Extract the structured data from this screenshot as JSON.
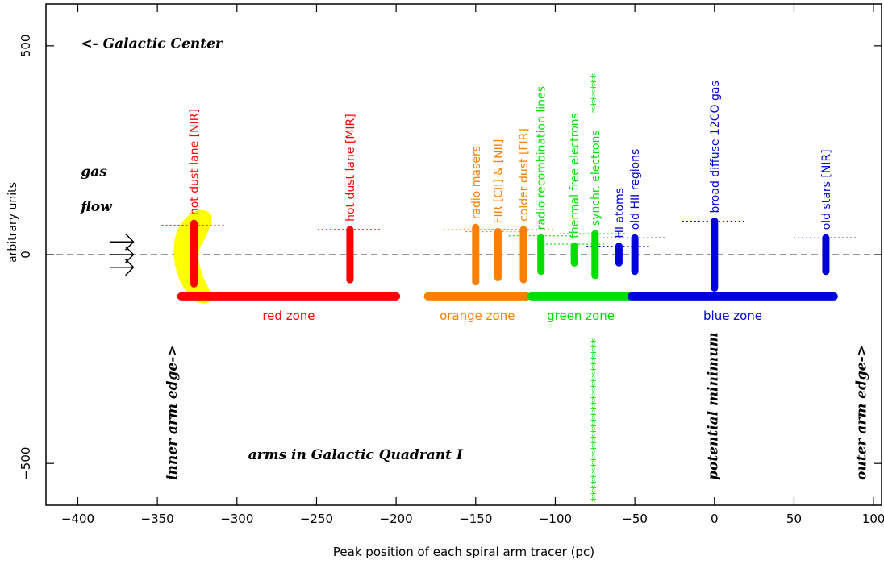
{
  "chart_data": {
    "type": "scatter",
    "xlabel": "Peak position of each spiral arm tracer (pc)",
    "ylabel": "arbitrary units",
    "xlim": [
      -420,
      105
    ],
    "ylim": [
      -600,
      600
    ],
    "x_ticks": [
      -400,
      -350,
      -300,
      -250,
      -200,
      -150,
      -100,
      -50,
      0,
      50,
      100
    ],
    "y_ticks": [
      -500,
      0,
      500
    ],
    "tracers": [
      {
        "label": "hot dust lane [NIR]",
        "x": -327,
        "y_bottom": -70,
        "y_top": 75,
        "color": "#ff0000",
        "ref_level": 70
      },
      {
        "label": "hot dust lane [MIR]",
        "x": -229,
        "y_bottom": -60,
        "y_top": 60,
        "color": "#ff0000",
        "ref_level": 60
      },
      {
        "label": "radio masers",
        "x": -150,
        "y_bottom": -65,
        "y_top": 65,
        "color": "#ff8000",
        "ref_level": 60
      },
      {
        "label": "FIR [CII] & [NII]",
        "x": -136,
        "y_bottom": -55,
        "y_top": 55,
        "color": "#ff8000",
        "ref_level": 55
      },
      {
        "label": "colder dust [FIR]",
        "x": -120,
        "y_bottom": -60,
        "y_top": 60,
        "color": "#ff8000",
        "ref_level": 60
      },
      {
        "label": "radio recombination lines",
        "x": -109,
        "y_bottom": -40,
        "y_top": 40,
        "color": "#00dd00",
        "ref_level": 45
      },
      {
        "label": "thermal free electrons",
        "x": -88,
        "y_bottom": -20,
        "y_top": 20,
        "color": "#00dd00",
        "ref_level": 25
      },
      {
        "label": "synchr. electrons",
        "x": -75,
        "y_bottom": -50,
        "y_top": 50,
        "color": "#00dd00",
        "ref_level": 50
      },
      {
        "label": "HI atoms",
        "x": -60,
        "y_bottom": -20,
        "y_top": 20,
        "color": "#0000dd",
        "ref_level": 20
      },
      {
        "label": "old HII regions",
        "x": -50,
        "y_bottom": -40,
        "y_top": 40,
        "color": "#0000dd",
        "ref_level": 40
      },
      {
        "label": "broad diffuse 12CO gas",
        "x": 0,
        "y_bottom": -80,
        "y_top": 80,
        "color": "#0000dd",
        "ref_level": 80
      },
      {
        "label": "old stars [NIR]",
        "x": 70,
        "y_bottom": -40,
        "y_top": 40,
        "color": "#0000dd",
        "ref_level": 40
      }
    ],
    "zones": [
      {
        "label": "red zone",
        "x_start": -335,
        "x_end": -200,
        "y": -100,
        "color": "#ff0000"
      },
      {
        "label": "orange zone",
        "x_start": -180,
        "x_end": -118,
        "y": -100,
        "color": "#ff8000"
      },
      {
        "label": "green zone",
        "x_start": -115,
        "x_end": -53,
        "y": -100,
        "color": "#00dd00"
      },
      {
        "label": "blue zone",
        "x_start": -52,
        "x_end": 75,
        "y": -100,
        "color": "#0000dd"
      }
    ],
    "annotations": {
      "galactic_center": "<- Galactic Center",
      "gas_flow_1": "gas",
      "gas_flow_2": "flow",
      "inner_arm_edge": "inner arm edge->",
      "outer_arm_edge": "outer arm edge->",
      "potential_minimum": "potential minimum",
      "arms_quadrant": "arms in Galactic Quadrant I",
      "synchr_stars": "*******",
      "vertical_stars": "*****************************"
    }
  }
}
